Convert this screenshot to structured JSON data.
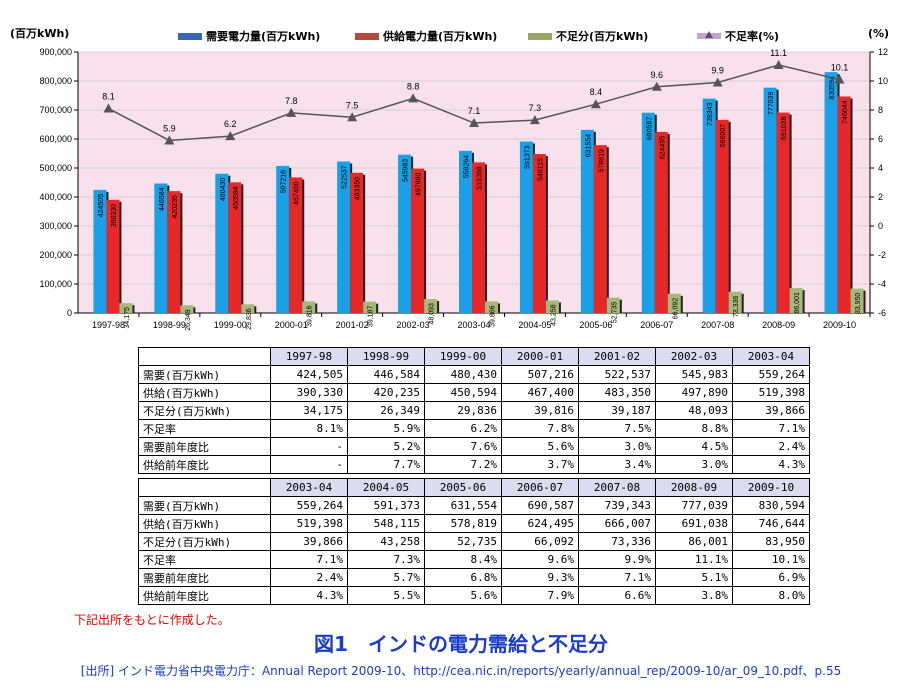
{
  "chart_data": {
    "type": "bar",
    "categories": [
      "1997-98",
      "1998-99",
      "1999-00",
      "2000-01",
      "2001-02",
      "2002-03",
      "2003-04",
      "2004-05",
      "2005-06",
      "2006-07",
      "2007-08",
      "2008-09",
      "2009-10"
    ],
    "y_left_unit": "(百万kWh)",
    "y_right_unit": "(%)",
    "ylim_left": [
      0,
      900000
    ],
    "ylim_right": [
      -6,
      12
    ],
    "y_left_ticks": [
      "0",
      "100,000",
      "200,000",
      "300,000",
      "400,000",
      "500,000",
      "600,000",
      "700,000",
      "800,000",
      "900,000"
    ],
    "y_right_ticks": [
      "-6",
      "-4",
      "-2",
      "0",
      "2",
      "4",
      "6",
      "8",
      "10",
      "12"
    ],
    "legend_position": "top",
    "series": [
      {
        "name": "需要電力量(百万kWh)",
        "kind": "bar",
        "color": "#1aa0e6",
        "values": [
          424505,
          446584,
          480430,
          507216,
          522537,
          545983,
          559264,
          591373,
          631554,
          690587,
          739343,
          777039,
          830594
        ]
      },
      {
        "name": "供給電力量(百万kWh)",
        "kind": "bar",
        "color": "#e62828",
        "values": [
          390330,
          420235,
          450594,
          467400,
          483350,
          497890,
          519398,
          548115,
          578819,
          624495,
          666007,
          691038,
          746644
        ]
      },
      {
        "name": "不足分(百万kWh)",
        "kind": "bar",
        "color": "#a8b878",
        "values": [
          34175,
          26349,
          29836,
          39816,
          39187,
          48093,
          39866,
          43258,
          52735,
          66092,
          73336,
          86001,
          83950
        ]
      },
      {
        "name": "不足率(%)",
        "kind": "line",
        "color": "#555555",
        "axis": "right",
        "values": [
          8.1,
          5.9,
          6.2,
          7.8,
          7.5,
          8.8,
          7.1,
          7.3,
          8.4,
          9.6,
          9.9,
          11.1,
          10.1
        ]
      }
    ],
    "bar_labels": {
      "demand": [
        "424505",
        "446584",
        "480430",
        "507216",
        "522537",
        "545983",
        "559264",
        "591373",
        "631554",
        "690587",
        "739343",
        "777039",
        "830594"
      ],
      "supply": [
        "390330",
        "420235",
        "450594",
        "467400",
        "483350",
        "497890",
        "519398",
        "548115",
        "578819",
        "624495",
        "666007",
        "691038",
        "746644"
      ],
      "shortage": [
        "34,175",
        "26,349",
        "29,836",
        "39,816",
        "39,187",
        "48,093",
        "39,866",
        "43,258",
        "52,735",
        "66,092",
        "73,336",
        "86,001",
        "83,950"
      ]
    }
  },
  "table1": {
    "years": [
      "1997-98",
      "1998-99",
      "1999-00",
      "2000-01",
      "2001-02",
      "2002-03",
      "2003-04"
    ],
    "rows": [
      {
        "label": "需要(百万kWh)",
        "values": [
          "424,505",
          "446,584",
          "480,430",
          "507,216",
          "522,537",
          "545,983",
          "559,264"
        ]
      },
      {
        "label": "供給(百万kWh)",
        "values": [
          "390,330",
          "420,235",
          "450,594",
          "467,400",
          "483,350",
          "497,890",
          "519,398"
        ]
      },
      {
        "label": "不足分(百万kWh)",
        "values": [
          "34,175",
          "26,349",
          "29,836",
          "39,816",
          "39,187",
          "48,093",
          "39,866"
        ]
      },
      {
        "label": "不足率",
        "values": [
          "8.1%",
          "5.9%",
          "6.2%",
          "7.8%",
          "7.5%",
          "8.8%",
          "7.1%"
        ]
      },
      {
        "label": "需要前年度比",
        "values": [
          "-",
          "5.2%",
          "7.6%",
          "5.6%",
          "3.0%",
          "4.5%",
          "2.4%"
        ]
      },
      {
        "label": "供給前年度比",
        "values": [
          "-",
          "7.7%",
          "7.2%",
          "3.7%",
          "3.4%",
          "3.0%",
          "4.3%"
        ]
      }
    ]
  },
  "table2": {
    "years": [
      "2003-04",
      "2004-05",
      "2005-06",
      "2006-07",
      "2007-08",
      "2008-09",
      "2009-10"
    ],
    "rows": [
      {
        "label": "需要(百万kWh)",
        "values": [
          "559,264",
          "591,373",
          "631,554",
          "690,587",
          "739,343",
          "777,039",
          "830,594"
        ]
      },
      {
        "label": "供給(百万kWh)",
        "values": [
          "519,398",
          "548,115",
          "578,819",
          "624,495",
          "666,007",
          "691,038",
          "746,644"
        ]
      },
      {
        "label": "不足分(百万kWh)",
        "values": [
          "39,866",
          "43,258",
          "52,735",
          "66,092",
          "73,336",
          "86,001",
          "83,950"
        ]
      },
      {
        "label": "不足率",
        "values": [
          "7.1%",
          "7.3%",
          "8.4%",
          "9.6%",
          "9.9%",
          "11.1%",
          "10.1%"
        ]
      },
      {
        "label": "需要前年度比",
        "values": [
          "2.4%",
          "5.7%",
          "6.8%",
          "9.3%",
          "7.1%",
          "5.1%",
          "6.9%"
        ]
      },
      {
        "label": "供給前年度比",
        "values": [
          "4.3%",
          "5.5%",
          "5.6%",
          "7.9%",
          "6.6%",
          "3.8%",
          "8.0%"
        ]
      }
    ]
  },
  "note": "下記出所をもとに作成した。",
  "caption": "図1　インドの電力需給と不足分",
  "source": "[出所] インド電力省中央電力庁：Annual Report 2009-10、http://cea.nic.in/reports/yearly/annual_rep/2009-10/ar_09_10.pdf、p.55",
  "colors": {
    "plot_bg": "#f8e0ec",
    "caption": "#1a3cc8",
    "note": "#e60000",
    "table_header": "#dcdcf0"
  }
}
